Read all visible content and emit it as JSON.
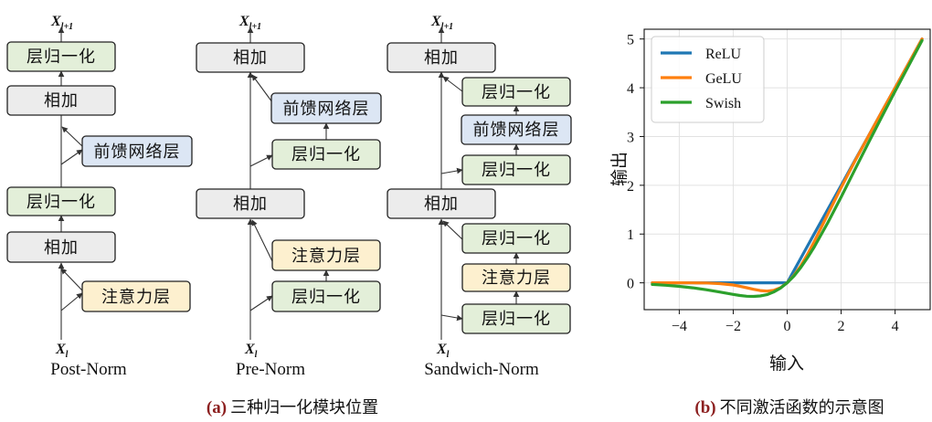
{
  "panel_a": {
    "caption_tag": "(a)",
    "caption_text": "三种归一化模块位置",
    "io": {
      "out_main": "X",
      "out_sub": "l+1",
      "in_main": "X",
      "in_sub": "l"
    },
    "post_norm": {
      "name": "Post-Norm",
      "blocks": [
        "层归一化",
        "相加",
        "前馈网络层",
        "层归一化",
        "相加",
        "注意力层"
      ]
    },
    "pre_norm": {
      "name": "Pre-Norm",
      "blocks": [
        "相加",
        "前馈网络层",
        "层归一化",
        "相加",
        "注意力层",
        "层归一化"
      ]
    },
    "sandwich_norm": {
      "name": "Sandwich-Norm",
      "blocks": [
        "相加",
        "层归一化",
        "前馈网络层",
        "层归一化",
        "相加",
        "层归一化",
        "注意力层",
        "层归一化"
      ]
    },
    "colors": {
      "norm": "#e3efd9",
      "add": "#ececec",
      "ffn": "#dce6f4",
      "attn": "#fdf0cf"
    }
  },
  "panel_b": {
    "caption_tag": "(b)",
    "caption_text": "不同激活函数的示意图"
  },
  "chart_data": {
    "type": "line",
    "title": "",
    "xlabel": "输入",
    "ylabel": "输出",
    "xlim": [
      -5.3,
      5.3
    ],
    "ylim": [
      -0.55,
      5.2
    ],
    "x_ticks": [
      -4,
      -2,
      0,
      2,
      4
    ],
    "y_ticks": [
      0,
      1,
      2,
      3,
      4,
      5
    ],
    "grid": true,
    "legend_position": "top-left",
    "x": [
      -5,
      -4.5,
      -4,
      -3.5,
      -3,
      -2.5,
      -2,
      -1.75,
      -1.5,
      -1.25,
      -1,
      -0.75,
      -0.5,
      -0.25,
      0,
      0.25,
      0.5,
      0.75,
      1,
      1.5,
      2,
      2.5,
      3,
      3.5,
      4,
      4.5,
      5
    ],
    "series": [
      {
        "name": "ReLU",
        "color": "#1f77b4",
        "values": [
          0,
          0,
          0,
          0,
          0,
          0,
          0,
          0,
          0,
          0,
          0,
          0,
          0,
          0,
          0,
          0.25,
          0.5,
          0.75,
          1,
          1.5,
          2,
          2.5,
          3,
          3.5,
          4,
          4.5,
          5
        ]
      },
      {
        "name": "GeLU",
        "color": "#ff7f0e",
        "values": [
          0,
          0,
          0,
          -0.001,
          -0.004,
          -0.016,
          -0.045,
          -0.07,
          -0.1,
          -0.132,
          -0.159,
          -0.17,
          -0.154,
          -0.1,
          0,
          0.15,
          0.346,
          0.58,
          0.841,
          1.4,
          1.955,
          2.484,
          2.996,
          3.499,
          4,
          4.5,
          5
        ]
      },
      {
        "name": "Swish",
        "color": "#2ca02c",
        "values": [
          -0.033,
          -0.05,
          -0.072,
          -0.103,
          -0.142,
          -0.189,
          -0.238,
          -0.259,
          -0.274,
          -0.279,
          -0.269,
          -0.242,
          -0.189,
          -0.11,
          0,
          0.14,
          0.311,
          0.51,
          0.731,
          1.227,
          1.762,
          2.31,
          2.858,
          3.395,
          3.928,
          4.45,
          4.967
        ]
      }
    ]
  }
}
